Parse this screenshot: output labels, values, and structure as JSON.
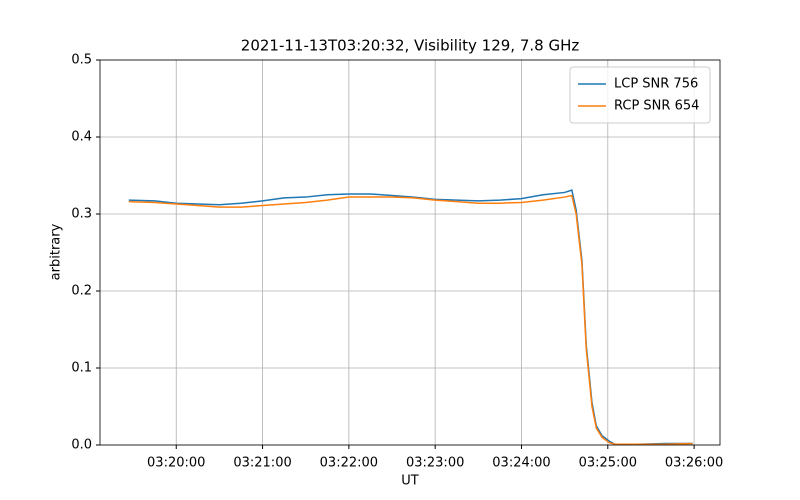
{
  "chart_data": {
    "type": "line",
    "title": "2021-11-13T03:20:32, Visibility 129, 7.8 GHz",
    "x_label": "UT",
    "y_label": "arbitrary",
    "x": [
      "03:19:27",
      "03:19:45",
      "03:20:00",
      "03:20:15",
      "03:20:30",
      "03:20:45",
      "03:21:00",
      "03:21:15",
      "03:21:30",
      "03:21:45",
      "03:22:00",
      "03:22:15",
      "03:22:30",
      "03:22:45",
      "03:23:00",
      "03:23:15",
      "03:23:30",
      "03:23:45",
      "03:24:00",
      "03:24:15",
      "03:24:30",
      "03:24:35",
      "03:24:38",
      "03:24:42",
      "03:24:45",
      "03:24:49",
      "03:24:52",
      "03:24:56",
      "03:25:01",
      "03:25:05",
      "03:25:20",
      "03:25:40",
      "03:25:59"
    ],
    "series": [
      {
        "name": "LCP SNR 756",
        "color": "#1f77b4",
        "values": [
          0.318,
          0.317,
          0.314,
          0.313,
          0.312,
          0.314,
          0.317,
          0.321,
          0.322,
          0.325,
          0.326,
          0.326,
          0.324,
          0.322,
          0.319,
          0.318,
          0.317,
          0.318,
          0.32,
          0.325,
          0.328,
          0.331,
          0.305,
          0.24,
          0.13,
          0.055,
          0.025,
          0.012,
          0.005,
          0.001,
          0.001,
          0.002,
          0.002
        ]
      },
      {
        "name": "RCP SNR 654",
        "color": "#ff7f0e",
        "values": [
          0.316,
          0.315,
          0.313,
          0.311,
          0.309,
          0.309,
          0.311,
          0.313,
          0.315,
          0.318,
          0.322,
          0.322,
          0.322,
          0.321,
          0.318,
          0.316,
          0.314,
          0.314,
          0.315,
          0.318,
          0.322,
          0.324,
          0.3,
          0.235,
          0.125,
          0.05,
          0.022,
          0.01,
          0.003,
          0.001,
          0.001,
          0.001,
          0.002
        ]
      }
    ],
    "xlim": [
      "03:19:07",
      "03:26:18"
    ],
    "xticks": [
      "03:20:00",
      "03:21:00",
      "03:22:00",
      "03:23:00",
      "03:24:00",
      "03:25:00",
      "03:26:00"
    ],
    "ylim": [
      0,
      0.5
    ],
    "yticks": [
      {
        "value": 0,
        "label": "0.0"
      },
      0.1,
      0.2,
      0.3,
      0.4,
      0.5
    ],
    "grid": true,
    "legend": "upper right"
  }
}
